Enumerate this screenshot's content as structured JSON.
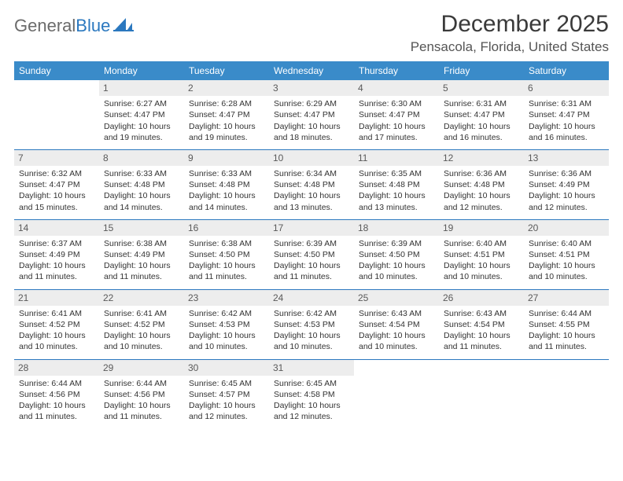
{
  "logo": {
    "word1": "General",
    "word2": "Blue"
  },
  "title": "December 2025",
  "location": "Pensacola, Florida, United States",
  "colors": {
    "header_bg": "#3a8bc9",
    "header_text": "#ffffff",
    "daynum_bg": "#ededed",
    "daynum_text": "#5a5a5a",
    "separator": "#2b78bf",
    "logo_gray": "#6b6b6b",
    "logo_blue": "#2b78bf"
  },
  "day_headers": [
    "Sunday",
    "Monday",
    "Tuesday",
    "Wednesday",
    "Thursday",
    "Friday",
    "Saturday"
  ],
  "weeks": [
    [
      null,
      {
        "n": "1",
        "sr": "Sunrise: 6:27 AM",
        "ss": "Sunset: 4:47 PM",
        "d1": "Daylight: 10 hours",
        "d2": "and 19 minutes."
      },
      {
        "n": "2",
        "sr": "Sunrise: 6:28 AM",
        "ss": "Sunset: 4:47 PM",
        "d1": "Daylight: 10 hours",
        "d2": "and 19 minutes."
      },
      {
        "n": "3",
        "sr": "Sunrise: 6:29 AM",
        "ss": "Sunset: 4:47 PM",
        "d1": "Daylight: 10 hours",
        "d2": "and 18 minutes."
      },
      {
        "n": "4",
        "sr": "Sunrise: 6:30 AM",
        "ss": "Sunset: 4:47 PM",
        "d1": "Daylight: 10 hours",
        "d2": "and 17 minutes."
      },
      {
        "n": "5",
        "sr": "Sunrise: 6:31 AM",
        "ss": "Sunset: 4:47 PM",
        "d1": "Daylight: 10 hours",
        "d2": "and 16 minutes."
      },
      {
        "n": "6",
        "sr": "Sunrise: 6:31 AM",
        "ss": "Sunset: 4:47 PM",
        "d1": "Daylight: 10 hours",
        "d2": "and 16 minutes."
      }
    ],
    [
      {
        "n": "7",
        "sr": "Sunrise: 6:32 AM",
        "ss": "Sunset: 4:47 PM",
        "d1": "Daylight: 10 hours",
        "d2": "and 15 minutes."
      },
      {
        "n": "8",
        "sr": "Sunrise: 6:33 AM",
        "ss": "Sunset: 4:48 PM",
        "d1": "Daylight: 10 hours",
        "d2": "and 14 minutes."
      },
      {
        "n": "9",
        "sr": "Sunrise: 6:33 AM",
        "ss": "Sunset: 4:48 PM",
        "d1": "Daylight: 10 hours",
        "d2": "and 14 minutes."
      },
      {
        "n": "10",
        "sr": "Sunrise: 6:34 AM",
        "ss": "Sunset: 4:48 PM",
        "d1": "Daylight: 10 hours",
        "d2": "and 13 minutes."
      },
      {
        "n": "11",
        "sr": "Sunrise: 6:35 AM",
        "ss": "Sunset: 4:48 PM",
        "d1": "Daylight: 10 hours",
        "d2": "and 13 minutes."
      },
      {
        "n": "12",
        "sr": "Sunrise: 6:36 AM",
        "ss": "Sunset: 4:48 PM",
        "d1": "Daylight: 10 hours",
        "d2": "and 12 minutes."
      },
      {
        "n": "13",
        "sr": "Sunrise: 6:36 AM",
        "ss": "Sunset: 4:49 PM",
        "d1": "Daylight: 10 hours",
        "d2": "and 12 minutes."
      }
    ],
    [
      {
        "n": "14",
        "sr": "Sunrise: 6:37 AM",
        "ss": "Sunset: 4:49 PM",
        "d1": "Daylight: 10 hours",
        "d2": "and 11 minutes."
      },
      {
        "n": "15",
        "sr": "Sunrise: 6:38 AM",
        "ss": "Sunset: 4:49 PM",
        "d1": "Daylight: 10 hours",
        "d2": "and 11 minutes."
      },
      {
        "n": "16",
        "sr": "Sunrise: 6:38 AM",
        "ss": "Sunset: 4:50 PM",
        "d1": "Daylight: 10 hours",
        "d2": "and 11 minutes."
      },
      {
        "n": "17",
        "sr": "Sunrise: 6:39 AM",
        "ss": "Sunset: 4:50 PM",
        "d1": "Daylight: 10 hours",
        "d2": "and 11 minutes."
      },
      {
        "n": "18",
        "sr": "Sunrise: 6:39 AM",
        "ss": "Sunset: 4:50 PM",
        "d1": "Daylight: 10 hours",
        "d2": "and 10 minutes."
      },
      {
        "n": "19",
        "sr": "Sunrise: 6:40 AM",
        "ss": "Sunset: 4:51 PM",
        "d1": "Daylight: 10 hours",
        "d2": "and 10 minutes."
      },
      {
        "n": "20",
        "sr": "Sunrise: 6:40 AM",
        "ss": "Sunset: 4:51 PM",
        "d1": "Daylight: 10 hours",
        "d2": "and 10 minutes."
      }
    ],
    [
      {
        "n": "21",
        "sr": "Sunrise: 6:41 AM",
        "ss": "Sunset: 4:52 PM",
        "d1": "Daylight: 10 hours",
        "d2": "and 10 minutes."
      },
      {
        "n": "22",
        "sr": "Sunrise: 6:41 AM",
        "ss": "Sunset: 4:52 PM",
        "d1": "Daylight: 10 hours",
        "d2": "and 10 minutes."
      },
      {
        "n": "23",
        "sr": "Sunrise: 6:42 AM",
        "ss": "Sunset: 4:53 PM",
        "d1": "Daylight: 10 hours",
        "d2": "and 10 minutes."
      },
      {
        "n": "24",
        "sr": "Sunrise: 6:42 AM",
        "ss": "Sunset: 4:53 PM",
        "d1": "Daylight: 10 hours",
        "d2": "and 10 minutes."
      },
      {
        "n": "25",
        "sr": "Sunrise: 6:43 AM",
        "ss": "Sunset: 4:54 PM",
        "d1": "Daylight: 10 hours",
        "d2": "and 10 minutes."
      },
      {
        "n": "26",
        "sr": "Sunrise: 6:43 AM",
        "ss": "Sunset: 4:54 PM",
        "d1": "Daylight: 10 hours",
        "d2": "and 11 minutes."
      },
      {
        "n": "27",
        "sr": "Sunrise: 6:44 AM",
        "ss": "Sunset: 4:55 PM",
        "d1": "Daylight: 10 hours",
        "d2": "and 11 minutes."
      }
    ],
    [
      {
        "n": "28",
        "sr": "Sunrise: 6:44 AM",
        "ss": "Sunset: 4:56 PM",
        "d1": "Daylight: 10 hours",
        "d2": "and 11 minutes."
      },
      {
        "n": "29",
        "sr": "Sunrise: 6:44 AM",
        "ss": "Sunset: 4:56 PM",
        "d1": "Daylight: 10 hours",
        "d2": "and 11 minutes."
      },
      {
        "n": "30",
        "sr": "Sunrise: 6:45 AM",
        "ss": "Sunset: 4:57 PM",
        "d1": "Daylight: 10 hours",
        "d2": "and 12 minutes."
      },
      {
        "n": "31",
        "sr": "Sunrise: 6:45 AM",
        "ss": "Sunset: 4:58 PM",
        "d1": "Daylight: 10 hours",
        "d2": "and 12 minutes."
      },
      null,
      null,
      null
    ]
  ]
}
